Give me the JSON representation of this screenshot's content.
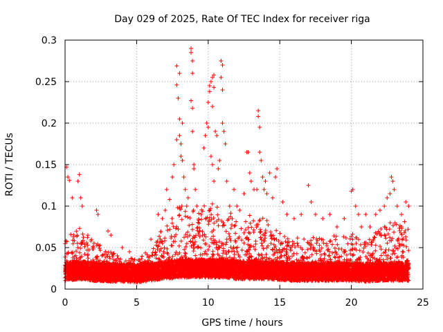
{
  "chart_data": {
    "type": "scatter",
    "title": "Day 029 of 2025, Rate Of TEC Index for receiver riga",
    "xlabel": "GPS time / hours",
    "ylabel": "ROTI / TECUs",
    "xlim": [
      0,
      25
    ],
    "ylim": [
      0,
      0.3
    ],
    "xticks": [
      0,
      5,
      10,
      15,
      20,
      25
    ],
    "yticks": [
      0,
      0.05,
      0.1,
      0.15,
      0.2,
      0.25,
      0.3
    ],
    "grid": true,
    "marker": "+",
    "color": "#ff0000",
    "x_data_range": [
      0,
      24
    ],
    "baseline_profile": [
      {
        "x": 0.0,
        "base": 0.018,
        "spread": 0.045
      },
      {
        "x": 1.0,
        "base": 0.02,
        "spread": 0.055
      },
      {
        "x": 2.0,
        "base": 0.018,
        "spread": 0.04
      },
      {
        "x": 3.0,
        "base": 0.017,
        "spread": 0.03
      },
      {
        "x": 4.0,
        "base": 0.017,
        "spread": 0.022
      },
      {
        "x": 5.0,
        "base": 0.016,
        "spread": 0.022
      },
      {
        "x": 6.0,
        "base": 0.018,
        "spread": 0.03
      },
      {
        "x": 7.0,
        "base": 0.02,
        "spread": 0.06
      },
      {
        "x": 8.0,
        "base": 0.022,
        "spread": 0.08
      },
      {
        "x": 9.0,
        "base": 0.022,
        "spread": 0.075
      },
      {
        "x": 10.0,
        "base": 0.022,
        "spread": 0.08
      },
      {
        "x": 11.0,
        "base": 0.022,
        "spread": 0.085
      },
      {
        "x": 12.0,
        "base": 0.02,
        "spread": 0.06
      },
      {
        "x": 13.0,
        "base": 0.02,
        "spread": 0.07
      },
      {
        "x": 14.0,
        "base": 0.02,
        "spread": 0.065
      },
      {
        "x": 15.0,
        "base": 0.019,
        "spread": 0.05
      },
      {
        "x": 16.0,
        "base": 0.018,
        "spread": 0.045
      },
      {
        "x": 17.0,
        "base": 0.018,
        "spread": 0.045
      },
      {
        "x": 18.0,
        "base": 0.018,
        "spread": 0.045
      },
      {
        "x": 19.0,
        "base": 0.018,
        "spread": 0.048
      },
      {
        "x": 20.0,
        "base": 0.018,
        "spread": 0.05
      },
      {
        "x": 21.0,
        "base": 0.017,
        "spread": 0.04
      },
      {
        "x": 22.0,
        "base": 0.018,
        "spread": 0.055
      },
      {
        "x": 23.0,
        "base": 0.018,
        "spread": 0.065
      },
      {
        "x": 24.0,
        "base": 0.018,
        "spread": 0.065
      }
    ],
    "notable_points": [
      [
        0.1,
        0.147
      ],
      [
        0.2,
        0.135
      ],
      [
        0.3,
        0.131
      ],
      [
        0.5,
        0.11
      ],
      [
        0.9,
        0.13
      ],
      [
        1.0,
        0.138
      ],
      [
        1.1,
        0.11
      ],
      [
        1.2,
        0.1
      ],
      [
        2.2,
        0.095
      ],
      [
        2.3,
        0.09
      ],
      [
        3.0,
        0.07
      ],
      [
        3.2,
        0.065
      ],
      [
        4.0,
        0.05
      ],
      [
        4.5,
        0.045
      ],
      [
        6.0,
        0.06
      ],
      [
        6.5,
        0.09
      ],
      [
        6.8,
        0.085
      ],
      [
        7.0,
        0.095
      ],
      [
        7.1,
        0.12
      ],
      [
        7.3,
        0.108
      ],
      [
        7.5,
        0.135
      ],
      [
        7.6,
        0.15
      ],
      [
        7.8,
        0.18
      ],
      [
        7.8,
        0.269
      ],
      [
        7.8,
        0.246
      ],
      [
        7.9,
        0.23
      ],
      [
        8.0,
        0.205
      ],
      [
        8.0,
        0.185
      ],
      [
        8.0,
        0.26
      ],
      [
        8.1,
        0.175
      ],
      [
        8.1,
        0.16
      ],
      [
        8.2,
        0.2
      ],
      [
        8.2,
        0.155
      ],
      [
        8.3,
        0.135
      ],
      [
        8.4,
        0.12
      ],
      [
        8.5,
        0.1
      ],
      [
        8.6,
        0.11
      ],
      [
        8.8,
        0.29
      ],
      [
        8.8,
        0.285
      ],
      [
        8.9,
        0.275
      ],
      [
        8.9,
        0.26
      ],
      [
        8.8,
        0.227
      ],
      [
        8.9,
        0.218
      ],
      [
        8.9,
        0.19
      ],
      [
        9.0,
        0.15
      ],
      [
        9.0,
        0.145
      ],
      [
        9.1,
        0.12
      ],
      [
        9.2,
        0.1
      ],
      [
        9.5,
        0.09
      ],
      [
        9.7,
        0.17
      ],
      [
        9.8,
        0.185
      ],
      [
        9.9,
        0.2
      ],
      [
        10.0,
        0.195
      ],
      [
        10.0,
        0.225
      ],
      [
        10.1,
        0.245
      ],
      [
        10.1,
        0.238
      ],
      [
        10.2,
        0.25
      ],
      [
        10.3,
        0.255
      ],
      [
        10.3,
        0.22
      ],
      [
        10.4,
        0.258
      ],
      [
        10.4,
        0.243
      ],
      [
        10.2,
        0.16
      ],
      [
        10.3,
        0.15
      ],
      [
        10.4,
        0.13
      ],
      [
        10.5,
        0.19
      ],
      [
        10.6,
        0.185
      ],
      [
        10.7,
        0.145
      ],
      [
        10.8,
        0.155
      ],
      [
        10.9,
        0.275
      ],
      [
        11.0,
        0.27
      ],
      [
        10.9,
        0.255
      ],
      [
        11.0,
        0.24
      ],
      [
        11.0,
        0.2
      ],
      [
        11.1,
        0.19
      ],
      [
        11.2,
        0.175
      ],
      [
        11.3,
        0.13
      ],
      [
        11.5,
        0.1
      ],
      [
        11.8,
        0.12
      ],
      [
        12.0,
        0.1
      ],
      [
        12.2,
        0.095
      ],
      [
        12.5,
        0.115
      ],
      [
        12.7,
        0.165
      ],
      [
        12.8,
        0.165
      ],
      [
        12.9,
        0.14
      ],
      [
        13.0,
        0.13
      ],
      [
        13.2,
        0.12
      ],
      [
        13.4,
        0.12
      ],
      [
        13.5,
        0.215
      ],
      [
        13.5,
        0.208
      ],
      [
        13.6,
        0.195
      ],
      [
        13.6,
        0.165
      ],
      [
        13.7,
        0.155
      ],
      [
        13.8,
        0.135
      ],
      [
        13.9,
        0.12
      ],
      [
        14.0,
        0.13
      ],
      [
        14.1,
        0.115
      ],
      [
        14.3,
        0.14
      ],
      [
        14.5,
        0.11
      ],
      [
        14.7,
        0.135
      ],
      [
        14.8,
        0.145
      ],
      [
        15.2,
        0.105
      ],
      [
        15.5,
        0.09
      ],
      [
        16.0,
        0.085
      ],
      [
        16.5,
        0.09
      ],
      [
        17.0,
        0.125
      ],
      [
        17.2,
        0.105
      ],
      [
        17.5,
        0.09
      ],
      [
        18.0,
        0.085
      ],
      [
        18.5,
        0.09
      ],
      [
        19.0,
        0.075
      ],
      [
        19.5,
        0.085
      ],
      [
        20.0,
        0.118
      ],
      [
        20.1,
        0.12
      ],
      [
        20.3,
        0.1
      ],
      [
        20.5,
        0.09
      ],
      [
        20.7,
        0.075
      ],
      [
        21.0,
        0.09
      ],
      [
        21.3,
        0.075
      ],
      [
        21.7,
        0.09
      ],
      [
        22.0,
        0.095
      ],
      [
        22.3,
        0.1
      ],
      [
        22.5,
        0.11
      ],
      [
        22.7,
        0.115
      ],
      [
        22.8,
        0.135
      ],
      [
        22.9,
        0.13
      ],
      [
        23.0,
        0.12
      ],
      [
        23.2,
        0.1
      ],
      [
        23.5,
        0.09
      ],
      [
        23.8,
        0.105
      ],
      [
        24.0,
        0.1
      ]
    ]
  }
}
